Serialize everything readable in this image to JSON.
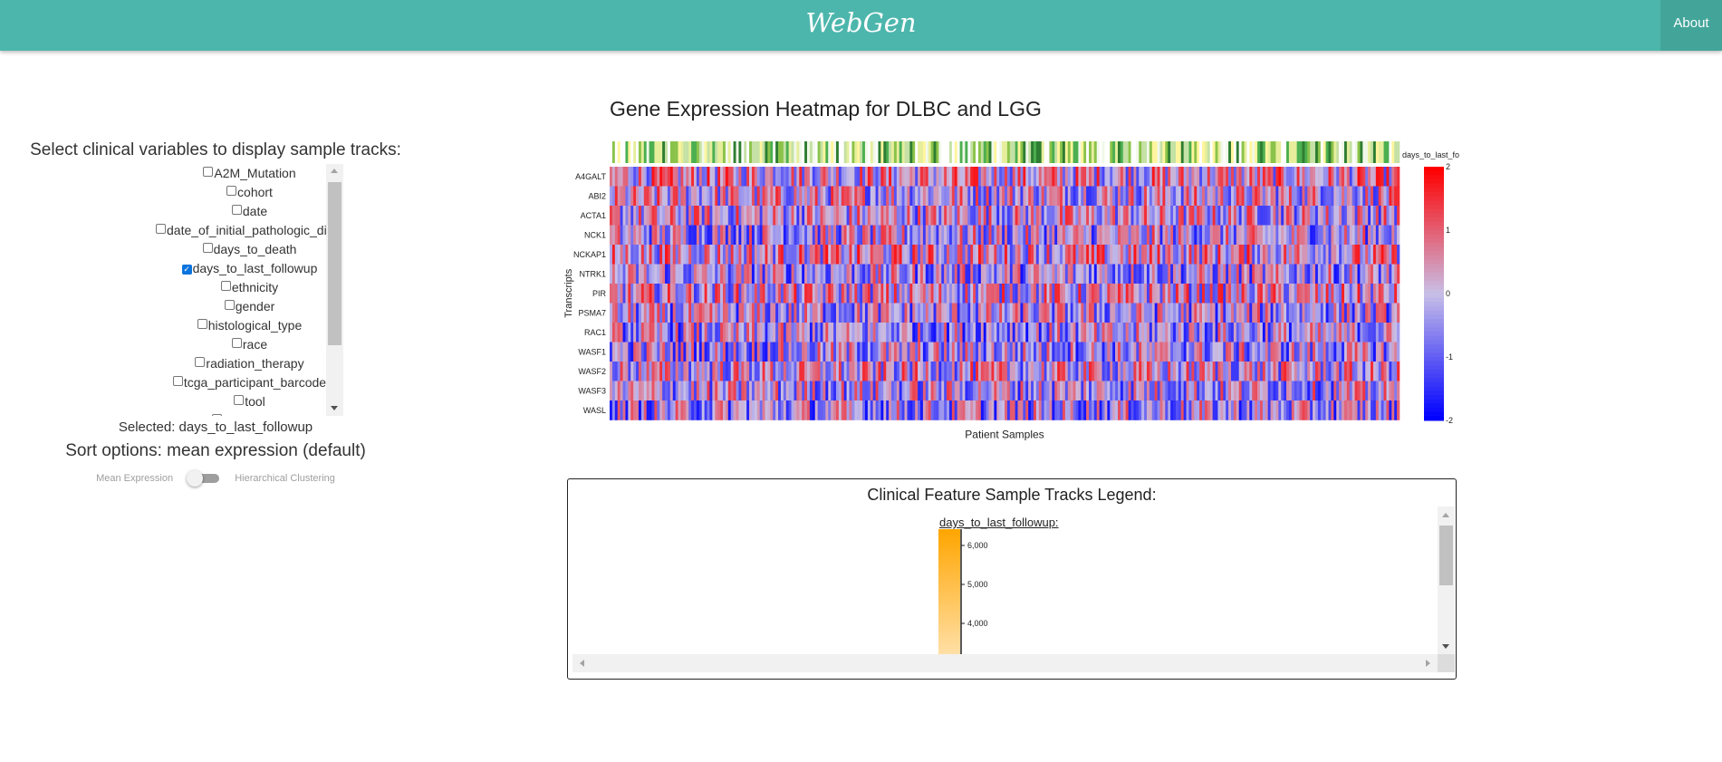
{
  "app": {
    "brand": "WebGen",
    "about_label": "About"
  },
  "sidebar": {
    "title": "Select clinical variables to display sample tracks:",
    "variables": [
      {
        "label": "A2M_Mutation",
        "checked": false
      },
      {
        "label": "cohort",
        "checked": false
      },
      {
        "label": "date",
        "checked": false
      },
      {
        "label": "date_of_initial_pathologic_diagnosis",
        "checked": false
      },
      {
        "label": "days_to_death",
        "checked": false
      },
      {
        "label": "days_to_last_followup",
        "checked": true
      },
      {
        "label": "ethnicity",
        "checked": false
      },
      {
        "label": "gender",
        "checked": false
      },
      {
        "label": "histological_type",
        "checked": false
      },
      {
        "label": "race",
        "checked": false
      },
      {
        "label": "radiation_therapy",
        "checked": false
      },
      {
        "label": "tcga_participant_barcode",
        "checked": false
      },
      {
        "label": "tool",
        "checked": false
      },
      {
        "label": "vital_status",
        "checked": false
      }
    ],
    "selected_text": "Selected: days_to_last_followup",
    "sort_text": "Sort options: mean expression (default)",
    "toggle_left": "Mean Expression",
    "toggle_right": "Hierarchical Clustering",
    "toggle_on": false
  },
  "heatmap": {
    "title": "Gene Expression Heatmap for DLBC and LGG",
    "track_label": "days_to_last_fo",
    "ylabel": "Transcripts",
    "xlabel": "Patient Samples",
    "colors": {
      "low": "#0000ff",
      "mid": "#c8bfe7",
      "high": "#ff0000"
    }
  },
  "chart_data": {
    "type": "heatmap",
    "title": "Gene Expression Heatmap for DLBC and LGG",
    "xlabel": "Patient Samples",
    "ylabel": "Transcripts",
    "rows": [
      "A4GALT",
      "ABI2",
      "ACTA1",
      "NCK1",
      "NCKAP1",
      "NTRK1",
      "PIR",
      "PSMA7",
      "RAC1",
      "WASF1",
      "WASF2",
      "WASF3",
      "WASL"
    ],
    "n_samples": 300,
    "color_scale": {
      "min": -2,
      "max": 2,
      "ticks": [
        2,
        1,
        0,
        -1,
        -2
      ]
    },
    "sample_track": "days_to_last_followup"
  },
  "legend": {
    "title": "Clinical Feature Sample Tracks Legend:",
    "feature": "days_to_last_followup:",
    "ticks": [
      "6,000",
      "5,000",
      "4,000"
    ],
    "color": "#ffa500"
  }
}
